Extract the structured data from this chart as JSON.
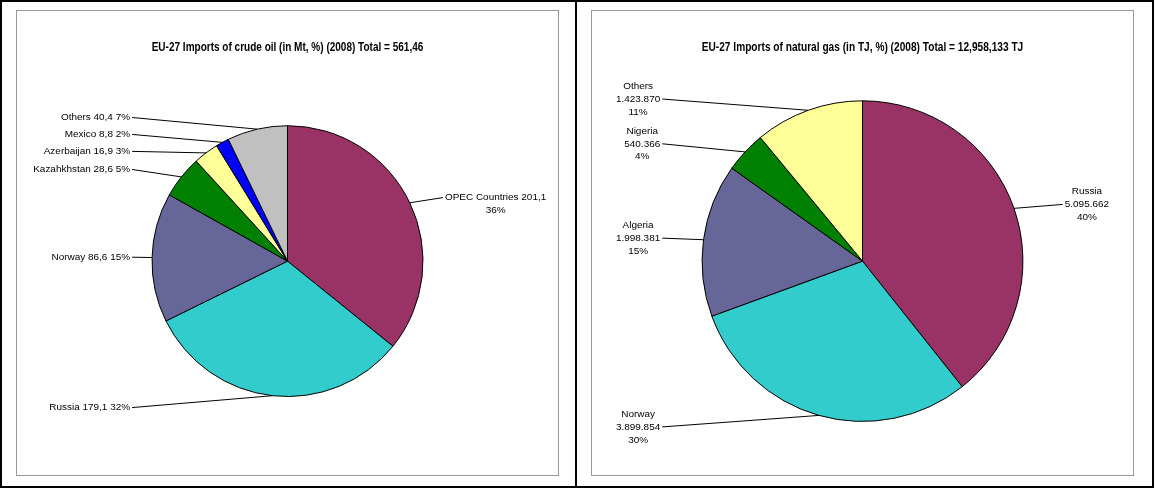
{
  "chart_data": [
    {
      "type": "pie",
      "title": "EU-27 Imports of crude oil (in Mt, %) (2008) Total = 561,46",
      "categories": [
        "OPEC Countries",
        "Russia",
        "Norway",
        "Kazahkhstan",
        "Azerbaijan",
        "Mexico",
        "Others"
      ],
      "values": [
        201.1,
        179.1,
        86.6,
        28.6,
        16.9,
        8.8,
        40.4
      ],
      "value_labels": [
        "201,1 36%",
        "179,1 32%",
        "86,6 15%",
        "28,6 5%",
        "16,9 3%",
        "8,8 2%",
        "40,4 7%"
      ],
      "colors": [
        "#993366",
        "#33cccc",
        "#666699",
        "#008000",
        "#ffff99",
        "#0000ff",
        "#c0c0c0"
      ]
    },
    {
      "type": "pie",
      "title": "EU-27 Imports of natural gas (in TJ, %) (2008) Total = 12,958,133 TJ",
      "categories": [
        "Russia",
        "Norway",
        "Algeria",
        "Nigeria",
        "Others"
      ],
      "values": [
        5095662,
        3899854,
        1998381,
        540366,
        1423870
      ],
      "value_labels": [
        "5.095.662 40%",
        "3.899.854 30%",
        "1.998.381 15%",
        "540.366 4%",
        "1.423.870 11%"
      ],
      "colors": [
        "#993366",
        "#33cccc",
        "#666699",
        "#008000",
        "#ffff99"
      ]
    }
  ]
}
